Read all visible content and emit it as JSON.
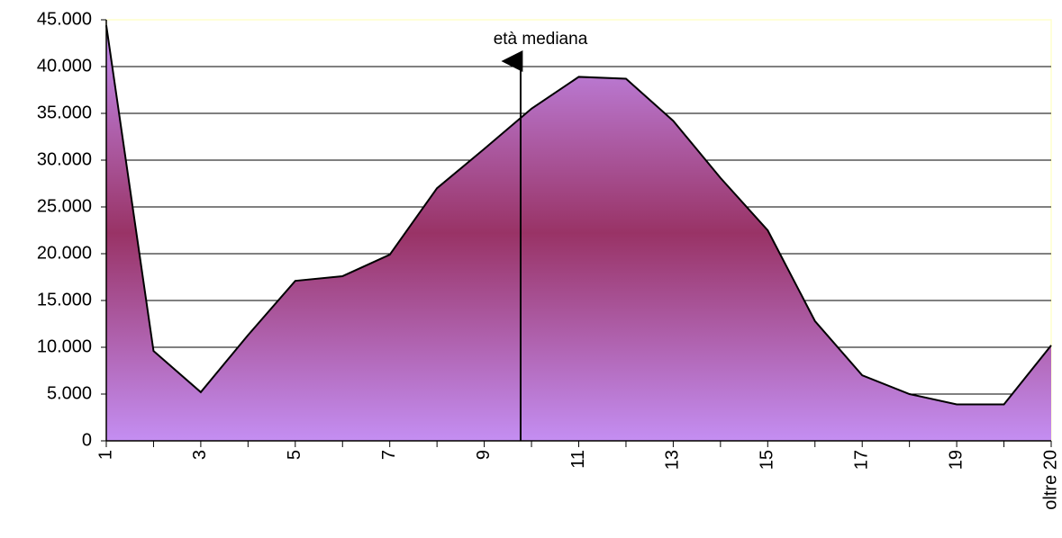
{
  "chart_data": {
    "type": "area",
    "categories": [
      "1",
      null,
      "3",
      null,
      "5",
      null,
      "7",
      null,
      "9",
      null,
      "11",
      null,
      "13",
      null,
      "15",
      null,
      "17",
      null,
      "19",
      null,
      "oltre 20"
    ],
    "values": [
      44400,
      9600,
      5200,
      11300,
      17100,
      17600,
      19900,
      27000,
      31200,
      35500,
      38900,
      38700,
      34200,
      28100,
      22500,
      12800,
      7000,
      5000,
      3900,
      3900,
      10200
    ],
    "gradient": [
      "#c48ef2",
      "#993366",
      "#c48ef2"
    ],
    "ylim": [
      0,
      45000
    ],
    "yticks": [
      0,
      {
        "value": 5000,
        "label": "5.000"
      },
      {
        "value": 10000,
        "label": "10.000"
      },
      {
        "value": 15000,
        "label": "15.000"
      },
      {
        "value": 20000,
        "label": "20.000"
      },
      {
        "value": 25000,
        "label": "25.000"
      },
      {
        "value": 30000,
        "label": "30.000"
      },
      {
        "value": 35000,
        "label": "35.000"
      },
      {
        "value": 40000,
        "label": "40.000"
      },
      {
        "value": 45000,
        "label": "45.000"
      }
    ],
    "grid": true,
    "annotation": {
      "text": "età mediana",
      "x": 9.77,
      "color": "#ff0000"
    }
  }
}
